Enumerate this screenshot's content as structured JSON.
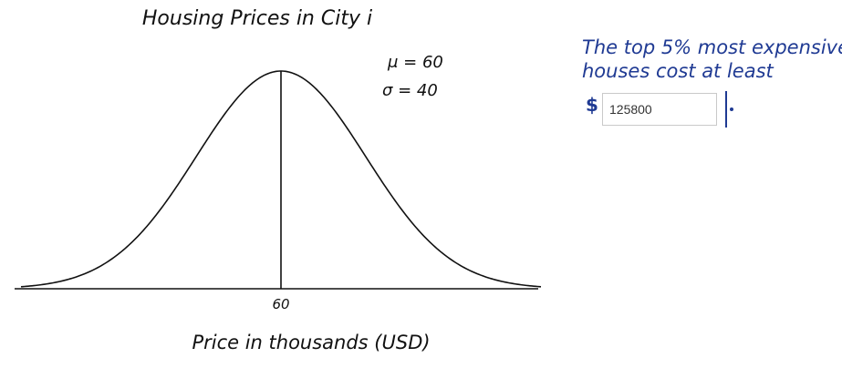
{
  "diagram": {
    "title": "Housing Prices in City i",
    "mu_label": "μ = 60",
    "sigma_label": "σ = 40",
    "center_tick": "60",
    "xlabel": "Price in thousands (USD)",
    "mean": 60,
    "sd": 40
  },
  "question": {
    "line1": "The top 5% most expensive",
    "line2": "houses cost at least",
    "currency": "$",
    "answer_value": "125800",
    "terminal": "."
  },
  "colors": {
    "ink": "#111111",
    "question_ink": "#1f3a93",
    "input_border": "#c9c9c9"
  }
}
